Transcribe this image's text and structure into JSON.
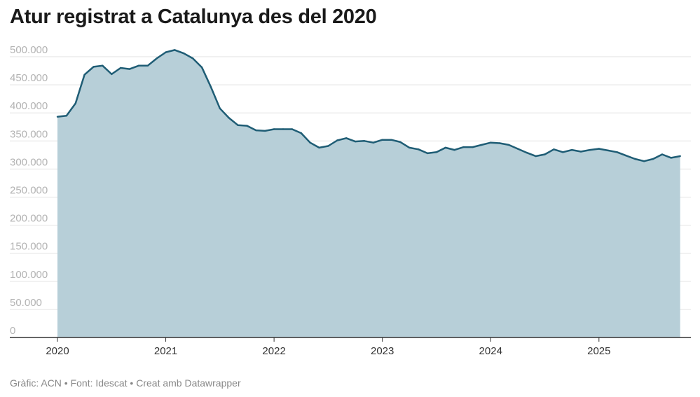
{
  "title": "Atur registrat a Catalunya des del 2020",
  "footer": {
    "credit": "Gràfic: ACN",
    "source": "Font: Idescat",
    "tool": "Creat amb Datawrapper",
    "separator": " • "
  },
  "colors": {
    "line": "#1f5d75",
    "area": "#b7cfd8",
    "grid": "#e2e2e2",
    "axis": "#333333"
  },
  "chart_data": {
    "type": "area",
    "title": "Atur registrat a Catalunya des del 2020",
    "xlabel": "",
    "ylabel": "",
    "ylim": [
      0,
      500000
    ],
    "xlim": [
      "2020-01",
      "2025-10"
    ],
    "grid": true,
    "y_ticks": [
      0,
      50000,
      100000,
      150000,
      200000,
      250000,
      300000,
      350000,
      400000,
      450000,
      500000
    ],
    "y_tick_labels": [
      "0",
      "50.000",
      "100.000",
      "150.000",
      "200.000",
      "250.000",
      "300.000",
      "350.000",
      "400.000",
      "450.000",
      "500.000"
    ],
    "x_ticks": [
      "2020-01",
      "2021-01",
      "2022-01",
      "2023-01",
      "2024-01",
      "2025-01"
    ],
    "x_tick_labels": [
      "2020",
      "2021",
      "2022",
      "2023",
      "2024",
      "2025"
    ],
    "x": [
      "2020-01",
      "2020-02",
      "2020-03",
      "2020-04",
      "2020-05",
      "2020-06",
      "2020-07",
      "2020-08",
      "2020-09",
      "2020-10",
      "2020-11",
      "2020-12",
      "2021-01",
      "2021-02",
      "2021-03",
      "2021-04",
      "2021-05",
      "2021-06",
      "2021-07",
      "2021-08",
      "2021-09",
      "2021-10",
      "2021-11",
      "2021-12",
      "2022-01",
      "2022-02",
      "2022-03",
      "2022-04",
      "2022-05",
      "2022-06",
      "2022-07",
      "2022-08",
      "2022-09",
      "2022-10",
      "2022-11",
      "2022-12",
      "2023-01",
      "2023-02",
      "2023-03",
      "2023-04",
      "2023-05",
      "2023-06",
      "2023-07",
      "2023-08",
      "2023-09",
      "2023-10",
      "2023-11",
      "2023-12",
      "2024-01",
      "2024-02",
      "2024-03",
      "2024-04",
      "2024-05",
      "2024-06",
      "2024-07",
      "2024-08",
      "2024-09",
      "2024-10",
      "2024-11",
      "2024-12",
      "2025-01",
      "2025-02",
      "2025-03",
      "2025-04",
      "2025-05",
      "2025-06",
      "2025-07",
      "2025-08",
      "2025-09",
      "2025-10"
    ],
    "series": [
      {
        "values": [
          393000,
          395000,
          417000,
          468000,
          482000,
          484000,
          469000,
          480000,
          478000,
          484000,
          484000,
          497000,
          508000,
          512000,
          506000,
          497000,
          481000,
          446000,
          408000,
          391000,
          378000,
          377000,
          369000,
          368000,
          371000,
          371000,
          371000,
          364000,
          347000,
          338000,
          341000,
          351000,
          355000,
          349000,
          350000,
          347000,
          352000,
          352000,
          348000,
          338000,
          335000,
          328000,
          330000,
          338000,
          334000,
          339000,
          339000,
          343000,
          347000,
          346000,
          343000,
          336000,
          329000,
          323000,
          326000,
          335000,
          330000,
          334000,
          331000,
          334000,
          336000,
          333000,
          330000,
          324000,
          318000,
          314000,
          318000,
          326000,
          320000,
          323000
        ]
      }
    ]
  }
}
